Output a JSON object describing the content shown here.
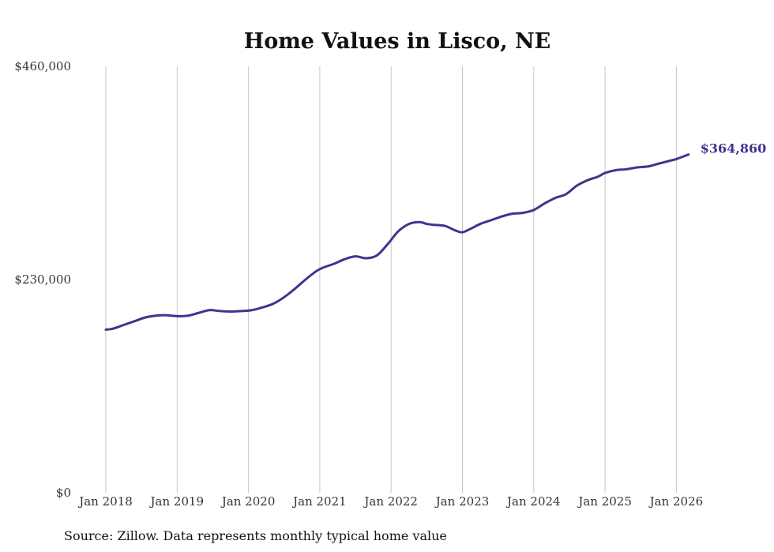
{
  "chart_data": {
    "type": "line",
    "title": "Home Values in Lisco, NE",
    "xlabel": "",
    "ylabel": "",
    "ylim": [
      0,
      460000
    ],
    "y_ticks": [
      0,
      230000,
      460000
    ],
    "y_tick_labels": [
      "$0",
      "$230,000",
      "$460,000"
    ],
    "x_range": [
      2018,
      2026.2
    ],
    "x_ticks": [
      2018,
      2019,
      2020,
      2021,
      2022,
      2023,
      2024,
      2025,
      2026
    ],
    "x_tick_labels": [
      "Jan 2018",
      "Jan 2019",
      "Jan 2020",
      "Jan 2021",
      "Jan 2022",
      "Jan 2023",
      "Jan 2024",
      "Jan 2025",
      "Jan 2026"
    ],
    "grid": "vertical",
    "series": [
      {
        "name": "Typical home value",
        "color": "#3d3590",
        "x": [
          2018.0,
          2018.1,
          2018.25,
          2018.4,
          2018.55,
          2018.7,
          2018.85,
          2019.0,
          2019.15,
          2019.3,
          2019.45,
          2019.6,
          2019.75,
          2019.9,
          2020.05,
          2020.2,
          2020.35,
          2020.5,
          2020.65,
          2020.8,
          2020.95,
          2021.05,
          2021.2,
          2021.35,
          2021.5,
          2021.65,
          2021.8,
          2021.95,
          2022.1,
          2022.25,
          2022.4,
          2022.5,
          2022.6,
          2022.75,
          2022.9,
          2023.0,
          2023.12,
          2023.25,
          2023.4,
          2023.55,
          2023.7,
          2023.85,
          2024.0,
          2024.15,
          2024.3,
          2024.45,
          2024.6,
          2024.75,
          2024.9,
          2025.0,
          2025.15,
          2025.3,
          2025.45,
          2025.6,
          2025.75,
          2025.9,
          2026.0,
          2026.17
        ],
        "values": [
          176000,
          177000,
          181000,
          185000,
          189000,
          191000,
          191500,
          190500,
          191000,
          194000,
          197000,
          196000,
          195500,
          196000,
          197000,
          200000,
          204000,
          211000,
          220000,
          230000,
          239000,
          243000,
          247000,
          252000,
          255000,
          253000,
          256000,
          268000,
          282000,
          290000,
          292000,
          290000,
          289000,
          288000,
          283000,
          281000,
          285000,
          290000,
          294000,
          298000,
          301000,
          302000,
          305000,
          312000,
          318000,
          322000,
          331000,
          337000,
          341000,
          345000,
          348000,
          349000,
          351000,
          352000,
          355000,
          358000,
          360000,
          364860
        ]
      }
    ],
    "end_label": "$364,860",
    "source": "Source: Zillow. Data represents monthly typical home value"
  }
}
